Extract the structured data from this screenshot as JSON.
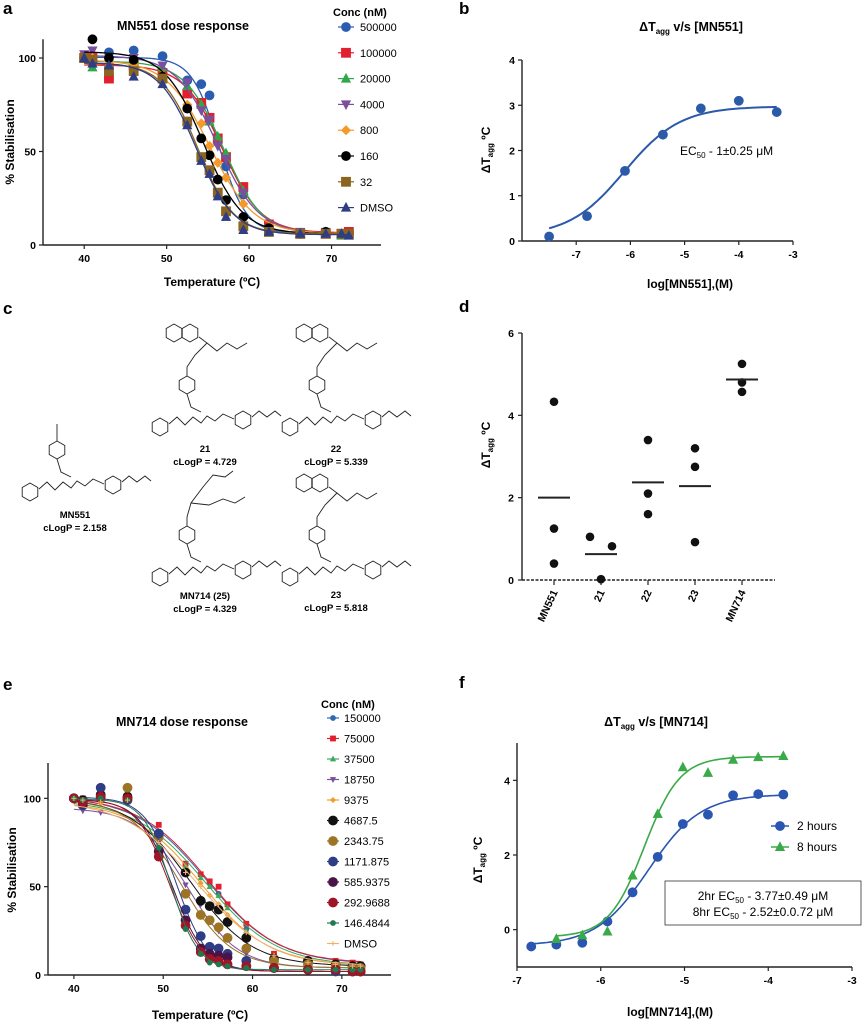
{
  "panel_labels": [
    "a",
    "b",
    "c",
    "d",
    "e",
    "f"
  ],
  "structures": [
    {
      "name": "MN551",
      "clogp": "cLogP = 2.158"
    },
    {
      "name": "21",
      "clogp": "cLogP = 4.729"
    },
    {
      "name": "22",
      "clogp": "cLogP = 5.339"
    },
    {
      "name": "MN714 (25)",
      "clogp": "cLogP = 4.329"
    },
    {
      "name": "23",
      "clogp": "cLogP = 5.818"
    }
  ],
  "chart_data": [
    {
      "panel": "a",
      "type": "line",
      "title": "MN551 dose response",
      "xlabel": "Temperature (ºC)",
      "ylabel": "% Stabilisation",
      "xlim": [
        35,
        76
      ],
      "ylim": [
        0,
        110
      ],
      "xticks": [
        40,
        50,
        60,
        70
      ],
      "yticks": [
        0,
        50,
        100
      ],
      "legend_title": "Conc (nM)",
      "legend": "right",
      "x": [
        40,
        41,
        43,
        46,
        49.5,
        52.5,
        54.2,
        55.2,
        56.2,
        57.2,
        59.3,
        62.4,
        66.2,
        69.3,
        71.2,
        72.1
      ],
      "series": [
        {
          "name": "500000",
          "color": "#2a5db0",
          "marker": "circle",
          "values": [
            100,
            98,
            103,
            104,
            101,
            88,
            86,
            80,
            55,
            42,
            27,
            9,
            6,
            7,
            6,
            7
          ]
        },
        {
          "name": "100000",
          "color": "#e0202e",
          "marker": "square",
          "values": [
            100,
            100,
            89,
            96,
            92,
            81,
            76,
            68,
            57,
            47,
            31,
            11,
            6,
            6,
            6,
            7
          ]
        },
        {
          "name": "20000",
          "color": "#2ea84a",
          "marker": "triangle",
          "values": [
            100,
            95,
            100,
            98,
            95,
            85,
            75,
            66,
            58,
            49,
            29,
            10,
            6,
            7,
            5,
            6
          ]
        },
        {
          "name": "4000",
          "color": "#7a4f9e",
          "marker": "triangle-down",
          "values": [
            102,
            104,
            98,
            100,
            96,
            87,
            72,
            67,
            53,
            46,
            28,
            9,
            7,
            7,
            6,
            6
          ]
        },
        {
          "name": "800",
          "color": "#f39a2b",
          "marker": "diamond",
          "values": [
            100,
            100,
            97,
            97,
            91,
            75,
            65,
            53,
            44,
            36,
            22,
            8,
            6,
            6,
            6,
            6
          ]
        },
        {
          "name": "160",
          "color": "#000000",
          "marker": "circle",
          "values": [
            100,
            110,
            100,
            99,
            90,
            73,
            57,
            48,
            35,
            24,
            15,
            9,
            6,
            7,
            6,
            6
          ]
        },
        {
          "name": "32",
          "color": "#8b6420",
          "marker": "square",
          "values": [
            100,
            99,
            93,
            93,
            89,
            66,
            47,
            40,
            28,
            18,
            10,
            7,
            6,
            6,
            6,
            6
          ]
        },
        {
          "name": "DMSO",
          "color": "#2e3d84",
          "marker": "triangle",
          "values": [
            100,
            97,
            96,
            90,
            86,
            64,
            45,
            38,
            26,
            15,
            8,
            7,
            6,
            6,
            6,
            5
          ]
        }
      ]
    },
    {
      "panel": "b",
      "type": "line",
      "title": {
        "pre": "ΔT",
        "sub": "agg",
        "post": " v/s [MN551]"
      },
      "xlabel": "log[MN551],(M)",
      "ylabel": {
        "pre": "ΔT",
        "sub": "agg",
        "post": " ºC"
      },
      "xlim": [
        -8,
        -3
      ],
      "ylim": [
        0,
        4
      ],
      "xticks": [
        -7,
        -6,
        -5,
        -4,
        -3
      ],
      "yticks": [
        0,
        1,
        2,
        3,
        4
      ],
      "x": [
        -7.5,
        -6.8,
        -6.1,
        -5.4,
        -4.7,
        -4.0,
        -3.3
      ],
      "series": [
        {
          "color": "#2a5aa8",
          "marker": "circle",
          "values": [
            0.1,
            0.55,
            1.55,
            2.35,
            2.93,
            3.1,
            2.85
          ]
        }
      ],
      "annotation": {
        "pre": "EC",
        "sub": "50",
        "post": " - 1±0.25 μM"
      }
    },
    {
      "panel": "d",
      "type": "scatter",
      "ylabel": {
        "pre": "ΔT",
        "sub": "agg",
        "post": " ºC"
      },
      "ylim": [
        0,
        6
      ],
      "yticks": [
        0,
        2,
        4,
        6
      ],
      "categories": [
        "MN551",
        "21",
        "22",
        "23",
        "MN714"
      ],
      "points": [
        [
          4.33,
          1.25,
          0.4
        ],
        [
          1.05,
          0.82,
          0.02
        ],
        [
          3.4,
          2.1,
          1.6
        ],
        [
          3.2,
          2.75,
          0.92
        ],
        [
          5.25,
          4.8,
          4.57
        ]
      ],
      "means": [
        2.0,
        0.63,
        2.37,
        2.28,
        4.87
      ],
      "color": "#111111"
    },
    {
      "panel": "e",
      "type": "line",
      "title": "MN714 dose response",
      "xlabel": "Temperature (ºC)",
      "ylabel": "% Stabilisation",
      "xlim": [
        37.1,
        75.5
      ],
      "ylim": [
        0,
        120
      ],
      "xticks": [
        40,
        50,
        60,
        70
      ],
      "yticks": [
        0,
        50,
        100
      ],
      "legend_title": "Conc (nM)",
      "legend": "right",
      "x": [
        40,
        41,
        43,
        46,
        49.5,
        52.5,
        54.2,
        55.2,
        56.2,
        57.2,
        59.3,
        62.4,
        66.2,
        69.3,
        71.2,
        72.1
      ],
      "series": [
        {
          "name": "150000",
          "color": "#3166b0",
          "marker": "circle-small",
          "values": [
            100,
            100,
            104,
            100,
            80,
            63,
            57,
            52,
            46,
            40,
            26,
            12,
            8,
            6,
            6,
            6
          ]
        },
        {
          "name": "75000",
          "color": "#e0202e",
          "marker": "square-small",
          "values": [
            100,
            100,
            103,
            101,
            85,
            63,
            57,
            53,
            50,
            40,
            29,
            12,
            8,
            8,
            7,
            6
          ]
        },
        {
          "name": "37500",
          "color": "#3aaa5c",
          "marker": "triangle-small",
          "values": [
            100,
            98,
            100,
            98,
            78,
            62,
            55,
            50,
            45,
            38,
            25,
            11,
            7,
            6,
            5,
            5
          ]
        },
        {
          "name": "18750",
          "color": "#7a4f9e",
          "marker": "triangle-down-small",
          "values": [
            99,
            93,
            92,
            97,
            75,
            51,
            40,
            32,
            25,
            20,
            12,
            8,
            6,
            5,
            4,
            4
          ]
        },
        {
          "name": "9375",
          "color": "#f39a2b",
          "marker": "diamond-small",
          "values": [
            100,
            98,
            97,
            99,
            77,
            58,
            52,
            45,
            40,
            34,
            22,
            10,
            7,
            6,
            5,
            5
          ]
        },
        {
          "name": "4687.5",
          "color": "#111111",
          "marker": "circle",
          "values": [
            100,
            99,
            102,
            101,
            80,
            58,
            42,
            39,
            37,
            30,
            21,
            9,
            8,
            6,
            5,
            5
          ]
        },
        {
          "name": "2343.75",
          "color": "#9b7426",
          "marker": "circle",
          "values": [
            100,
            98,
            100,
            106,
            78,
            46,
            34,
            31,
            27,
            21,
            15,
            8,
            6,
            5,
            4,
            4
          ]
        },
        {
          "name": "1171.875",
          "color": "#2e3d84",
          "marker": "hexagon",
          "values": [
            100,
            96,
            106,
            99,
            80,
            37,
            22,
            16,
            15,
            12,
            8,
            4,
            3,
            2,
            2,
            2
          ]
        },
        {
          "name": "585.9375",
          "color": "#4a1448",
          "marker": "hexagon",
          "values": [
            100,
            97,
            101,
            100,
            70,
            31,
            15,
            12,
            11,
            10,
            5,
            4,
            3,
            3,
            2,
            2
          ]
        },
        {
          "name": "292.9688",
          "color": "#a01525",
          "marker": "hexagon",
          "values": [
            100,
            98,
            101,
            100,
            67,
            28,
            13,
            9,
            8,
            6,
            5,
            4,
            3,
            3,
            2,
            2
          ]
        },
        {
          "name": "146.4844",
          "color": "#1f7a52",
          "marker": "hexagon-small",
          "values": [
            100,
            99,
            100,
            99,
            72,
            26,
            12,
            7,
            6,
            5,
            4,
            3,
            3,
            3,
            3,
            3
          ]
        },
        {
          "name": "DMSO",
          "color": "#f0b070",
          "marker": "plus",
          "values": [
            100,
            99,
            98,
            99,
            75,
            58,
            50,
            45,
            40,
            34,
            24,
            11,
            7,
            6,
            5,
            5
          ]
        }
      ]
    },
    {
      "panel": "f",
      "type": "line",
      "title": {
        "pre": "ΔT",
        "sub": "agg",
        "post": " v/s [MN714]"
      },
      "xlabel": "log[MN714],(M)",
      "ylabel": {
        "pre": "ΔT",
        "sub": "agg",
        "post": " ºC"
      },
      "xlim": [
        -7,
        -3
      ],
      "ylim": [
        -1,
        5
      ],
      "xticks": [
        -7,
        -6,
        -5,
        -4,
        -3
      ],
      "yticks": [
        0,
        2,
        4
      ],
      "legend": "right",
      "x": [
        -6.83,
        -6.53,
        -6.22,
        -5.92,
        -5.62,
        -5.32,
        -5.02,
        -4.72,
        -4.42,
        -4.12,
        -3.82
      ],
      "series": [
        {
          "name": "2 hours",
          "color": "#2a55b0",
          "marker": "circle",
          "values": [
            -0.45,
            -0.4,
            -0.35,
            0.22,
            1.0,
            1.95,
            2.83,
            3.08,
            3.6,
            3.63,
            3.62
          ]
        },
        {
          "name": "8 hours",
          "color": "#3aaa48",
          "marker": "triangle",
          "values": [
            null,
            -0.25,
            -0.15,
            -0.05,
            1.45,
            3.1,
            4.35,
            4.2,
            4.55,
            4.62,
            4.65
          ]
        }
      ],
      "annotation_lines": [
        {
          "pre": "2hr EC",
          "sub": "50",
          "post": " - 3.77±0.49 μM"
        },
        {
          "pre": "8hr EC",
          "sub": "50",
          "post": " - 2.52±0.0.72 μM"
        }
      ]
    }
  ]
}
